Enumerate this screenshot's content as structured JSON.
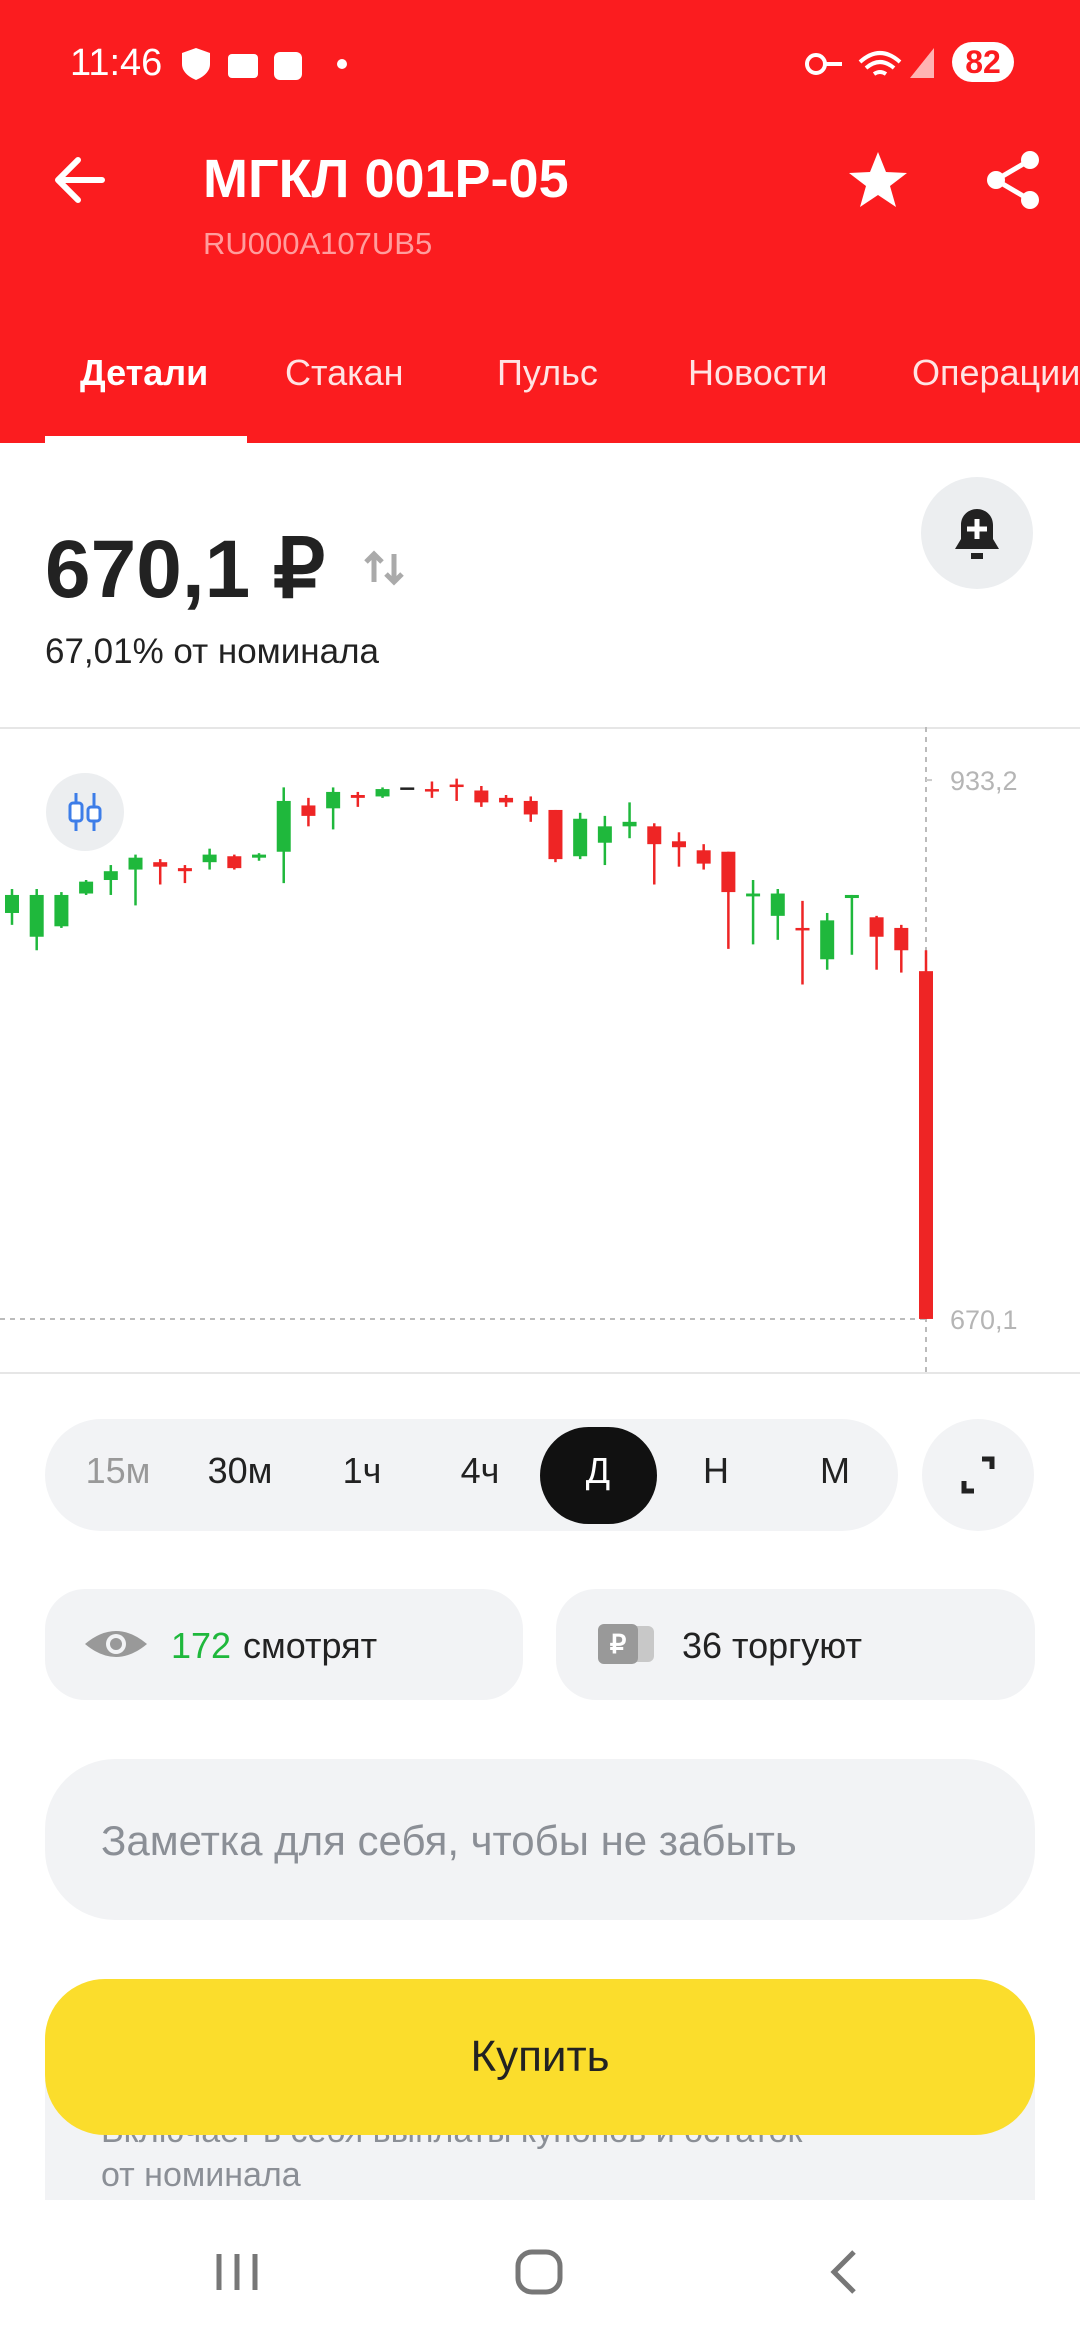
{
  "status_bar": {
    "time": "11:46",
    "battery": "82"
  },
  "header": {
    "title": "МГКЛ 001Р-05",
    "subtitle": "RU000A107UB5"
  },
  "tabs": [
    "Детали",
    "Стакан",
    "Пульс",
    "Новости",
    "Операции"
  ],
  "price": {
    "value": "670,1 ₽",
    "nominal": "67,01% от номинала"
  },
  "chart_data": {
    "type": "candlestick",
    "ylim": [
      644.2,
      959.1
    ],
    "yticks": [
      {
        "value": 933.2,
        "label": "933,2"
      },
      {
        "value": 670.1,
        "label": "670,1"
      }
    ],
    "up_color": "#1fb83c",
    "down_color": "#ee2525",
    "flat_color": "#222222",
    "open": [
      868.3,
      856.7,
      861.8,
      877.8,
      884.4,
      889.5,
      893.1,
      890.2,
      893.1,
      896.0,
      895.3,
      898.2,
      920.8,
      919.4,
      925.9,
      925.2,
      929.6,
      928.8,
      931.0,
      928.1,
      924.5,
      923.0,
      918.6,
      896.0,
      902.6,
      910.6,
      910.6,
      903.3,
      898.9,
      898.2,
      876.4,
      866.9,
      861.0,
      845.7,
      875.6,
      866.2,
      861.0,
      839.9
    ],
    "high": [
      880.0,
      880.0,
      878.5,
      884.4,
      891.7,
      896.8,
      894.6,
      891.7,
      899.7,
      896.8,
      897.5,
      929.6,
      924.5,
      929.6,
      927.4,
      929.6,
      929.6,
      932.5,
      933.9,
      930.3,
      925.9,
      925.2,
      918.6,
      917.2,
      915.7,
      922.3,
      912.1,
      907.7,
      901.9,
      898.2,
      884.4,
      880.0,
      874.2,
      868.3,
      877.1,
      866.9,
      862.5,
      850.1
    ],
    "low": [
      862.5,
      850.1,
      861.0,
      877.1,
      877.1,
      872.0,
      882.2,
      882.9,
      889.5,
      889.5,
      893.8,
      882.9,
      910.6,
      909.1,
      920.1,
      924.5,
      929.6,
      924.5,
      923.0,
      920.1,
      920.1,
      912.8,
      893.1,
      894.6,
      891.7,
      904.8,
      882.2,
      890.9,
      889.5,
      850.8,
      853.0,
      855.2,
      833.4,
      840.6,
      847.9,
      840.6,
      839.2,
      670.1
    ],
    "close": [
      877.1,
      877.1,
      877.1,
      883.6,
      888.7,
      895.3,
      890.9,
      888.7,
      896.8,
      890.2,
      896.8,
      923.0,
      915.7,
      927.4,
      924.5,
      928.8,
      929.6,
      928.1,
      930.3,
      922.3,
      922.3,
      916.4,
      894.6,
      914.3,
      910.6,
      912.8,
      901.9,
      900.4,
      892.4,
      878.5,
      877.8,
      877.8,
      860.3,
      864.7,
      877.1,
      856.7,
      850.1,
      670.1
    ]
  },
  "timeframes": {
    "items": [
      "15м",
      "30м",
      "1ч",
      "4ч",
      "Д",
      "Н",
      "М"
    ],
    "selected": 4
  },
  "stats": {
    "watching_count": "172",
    "watching_label": "смотрят",
    "trading": "36 торгуют"
  },
  "note_placeholder": "Заметка для себя, чтобы не забыть",
  "info_text": [
    "Включает в себя выплаты купонов и остаток",
    "от номинала"
  ],
  "buy_button": "Купить"
}
